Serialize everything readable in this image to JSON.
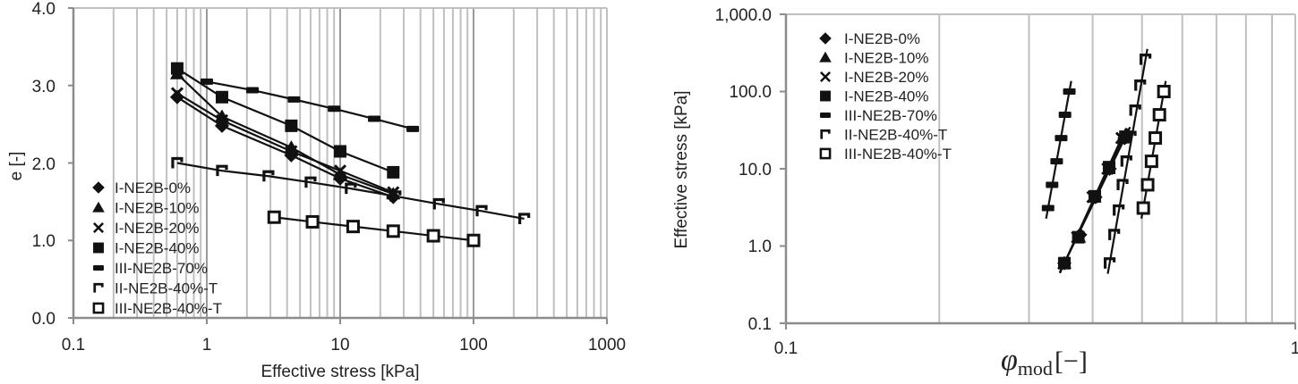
{
  "chart_data": [
    {
      "type": "scatter",
      "title": "",
      "xlabel": "Effective stress [kPa]",
      "ylabel": "e [-]",
      "xscale": "log",
      "xlim": [
        0.1,
        1000
      ],
      "ylim": [
        0.0,
        4.0
      ],
      "x_ticks": [
        "0.1",
        "1",
        "10",
        "100",
        "1000"
      ],
      "y_ticks": [
        "0.0",
        "1.0",
        "2.0",
        "3.0",
        "4.0"
      ],
      "grid": "vertical minor+major",
      "legend_position": "lower-left inside",
      "series": [
        {
          "name": "I-NE2B-0%",
          "marker": "diamond",
          "points": [
            [
              0.6,
              2.85
            ],
            [
              1.3,
              2.48
            ],
            [
              4.3,
              2.1
            ],
            [
              10,
              1.8
            ],
            [
              25,
              1.56
            ]
          ]
        },
        {
          "name": "I-NE2B-10%",
          "marker": "triangle",
          "points": [
            [
              0.6,
              3.15
            ],
            [
              1.3,
              2.6
            ],
            [
              4.3,
              2.2
            ],
            [
              10,
              1.85
            ],
            [
              25,
              1.6
            ]
          ]
        },
        {
          "name": "I-NE2B-20%",
          "marker": "x",
          "points": [
            [
              0.6,
              2.9
            ],
            [
              1.3,
              2.55
            ],
            [
              4.3,
              2.15
            ],
            [
              10,
              1.9
            ],
            [
              25,
              1.62
            ]
          ]
        },
        {
          "name": "I-NE2B-40%",
          "marker": "square",
          "points": [
            [
              0.6,
              3.22
            ],
            [
              1.3,
              2.85
            ],
            [
              4.3,
              2.48
            ],
            [
              10,
              2.15
            ],
            [
              25,
              1.88
            ]
          ]
        },
        {
          "name": "III-NE2B-70%",
          "marker": "dash",
          "points": [
            [
              1.0,
              3.05
            ],
            [
              2.2,
              2.94
            ],
            [
              4.5,
              2.82
            ],
            [
              9,
              2.7
            ],
            [
              18,
              2.57
            ],
            [
              35,
              2.44
            ]
          ]
        },
        {
          "name": "II-NE2B-40%-T",
          "marker": "bracket",
          "points": [
            [
              0.6,
              2.0
            ],
            [
              1.3,
              1.9
            ],
            [
              2.9,
              1.83
            ],
            [
              6,
              1.75
            ],
            [
              12,
              1.67
            ],
            [
              26,
              1.57
            ],
            [
              55,
              1.47
            ],
            [
              115,
              1.38
            ],
            [
              240,
              1.28
            ]
          ]
        },
        {
          "name": "III-NE2B-40%-T",
          "marker": "open-square",
          "points": [
            [
              3.2,
              1.3
            ],
            [
              6.2,
              1.24
            ],
            [
              12.5,
              1.18
            ],
            [
              25,
              1.12
            ],
            [
              50,
              1.06
            ],
            [
              100,
              1.0
            ]
          ]
        }
      ]
    },
    {
      "type": "scatter",
      "title": "",
      "xlabel": "φmod [−]",
      "ylabel": "Effective stress  [kPa]",
      "xscale": "log",
      "yscale": "log",
      "xlim": [
        0.1,
        1
      ],
      "ylim": [
        0.1,
        1000
      ],
      "x_ticks": [
        "0.1",
        "1"
      ],
      "y_ticks": [
        "0.1",
        "1.0",
        "10.0",
        "100.0",
        "1,000.0"
      ],
      "grid": "vertical minor",
      "legend_position": "upper-left inside",
      "series": [
        {
          "name": "I-NE2B-0%",
          "marker": "diamond",
          "points": [
            [
              0.352,
              0.6
            ],
            [
              0.378,
              1.4
            ],
            [
              0.405,
              4.3
            ],
            [
              0.432,
              10
            ],
            [
              0.462,
              25
            ]
          ]
        },
        {
          "name": "I-NE2B-10%",
          "marker": "triangle",
          "points": [
            [
              0.352,
              0.6
            ],
            [
              0.376,
              1.3
            ],
            [
              0.403,
              4.3
            ],
            [
              0.43,
              10
            ],
            [
              0.458,
              25
            ]
          ]
        },
        {
          "name": "I-NE2B-20%",
          "marker": "x",
          "points": [
            [
              0.352,
              0.6
            ],
            [
              0.373,
              1.3
            ],
            [
              0.4,
              4.3
            ],
            [
              0.428,
              10
            ],
            [
              0.456,
              25
            ]
          ]
        },
        {
          "name": "I-NE2B-40%",
          "marker": "square",
          "points": [
            [
              0.352,
              0.6
            ],
            [
              0.375,
              1.3
            ],
            [
              0.404,
              4.4
            ],
            [
              0.431,
              10.5
            ],
            [
              0.464,
              26
            ]
          ]
        },
        {
          "name": "III-NE2B-70%",
          "marker": "dash",
          "points": [
            [
              0.327,
              3.1
            ],
            [
              0.333,
              6.2
            ],
            [
              0.34,
              12.5
            ],
            [
              0.347,
              25
            ],
            [
              0.353,
              50
            ],
            [
              0.36,
              100
            ]
          ]
        },
        {
          "name": "II-NE2B-40%-T",
          "marker": "bracket",
          "points": [
            [
              0.432,
              0.6
            ],
            [
              0.441,
              1.4
            ],
            [
              0.45,
              2.9
            ],
            [
              0.458,
              6.2
            ],
            [
              0.466,
              12.5
            ],
            [
              0.475,
              26
            ],
            [
              0.485,
              57
            ],
            [
              0.496,
              120
            ],
            [
              0.508,
              260
            ]
          ]
        },
        {
          "name": "III-NE2B-40%-T",
          "marker": "open-square",
          "points": [
            [
              0.503,
              3.1
            ],
            [
              0.513,
              6.2
            ],
            [
              0.522,
              12.5
            ],
            [
              0.531,
              25
            ],
            [
              0.541,
              50
            ],
            [
              0.552,
              100
            ]
          ]
        }
      ]
    }
  ],
  "left": {
    "ylabel": "e [-]",
    "xlabel": "Effective stress [kPa]",
    "yticks": [
      "0.0",
      "1.0",
      "2.0",
      "3.0",
      "4.0"
    ],
    "xticks": [
      "0.1",
      "1",
      "10",
      "100",
      "1000"
    ]
  },
  "right": {
    "ylabel": "Effective stress  [kPa]",
    "xlabel_symbol": "φ",
    "xlabel_sub": "mod",
    "xlabel_unit": "[−]",
    "yticks": [
      "0.1",
      "1.0",
      "10.0",
      "100.0",
      "1,000.0"
    ],
    "xticks": [
      "0.1",
      "1"
    ]
  },
  "legend": [
    "I-NE2B-0%",
    "I-NE2B-10%",
    "I-NE2B-20%",
    "I-NE2B-40%",
    "III-NE2B-70%",
    "II-NE2B-40%-T",
    "III-NE2B-40%-T"
  ],
  "colors": {
    "grid": "#c0c0c0",
    "axis": "#8c8c8c",
    "series": "#111111"
  }
}
